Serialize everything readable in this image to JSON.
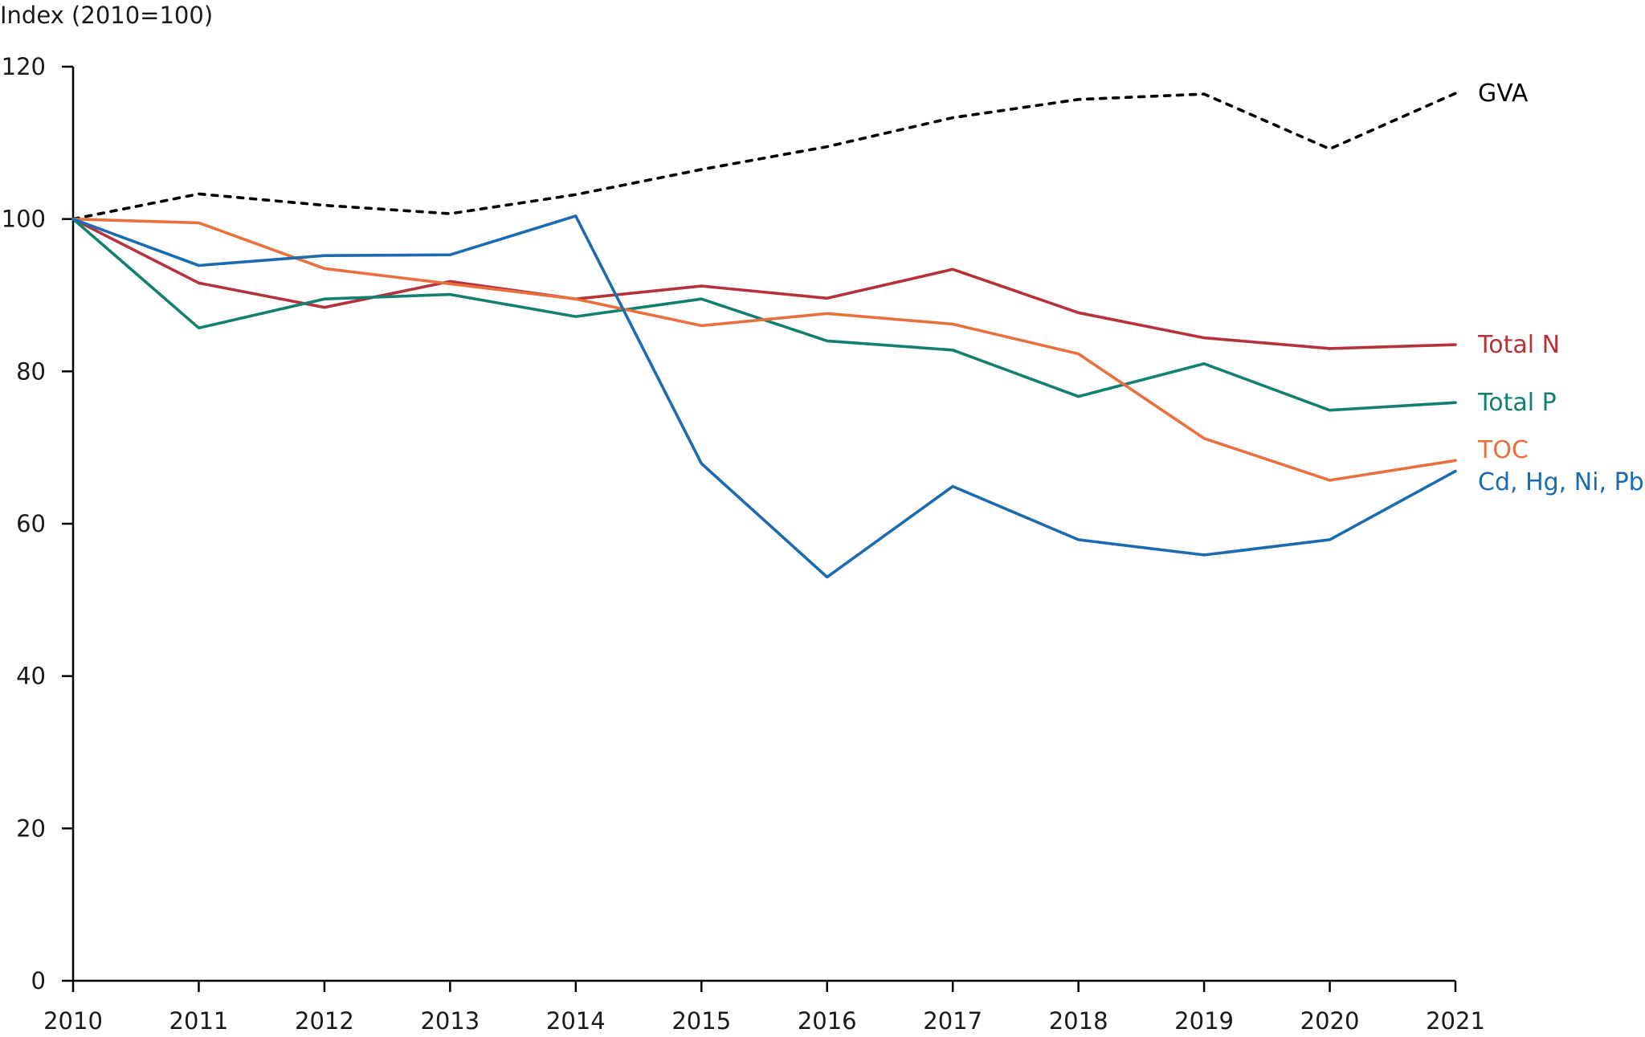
{
  "chart_data": {
    "type": "line",
    "title": "",
    "xlabel": "",
    "ylabel": "Index (2010=100)",
    "ylim": [
      0,
      120
    ],
    "yticks": [
      0,
      20,
      40,
      60,
      80,
      100,
      120
    ],
    "grid": false,
    "legend_placement": "right-end-labels",
    "x": [
      2010,
      2011,
      2012,
      2013,
      2014,
      2015,
      2016,
      2017,
      2018,
      2019,
      2020,
      2021
    ],
    "series": [
      {
        "name": "GVA",
        "color": "#000000",
        "dashed": true,
        "values": [
          100,
          103.3,
          101.8,
          100.7,
          103.2,
          106.5,
          109.5,
          113.3,
          115.7,
          116.4,
          109.2,
          116.5
        ]
      },
      {
        "name": "Total N",
        "color": "#b5323a",
        "dashed": false,
        "values": [
          100,
          91.6,
          88.4,
          91.8,
          89.5,
          91.2,
          89.6,
          93.4,
          87.7,
          84.4,
          83.0,
          83.5
        ]
      },
      {
        "name": "Total P",
        "color": "#13806f",
        "dashed": false,
        "values": [
          100,
          85.7,
          89.5,
          90.1,
          87.2,
          89.5,
          84.0,
          82.8,
          76.7,
          81.0,
          74.9,
          75.9
        ]
      },
      {
        "name": "TOC",
        "color": "#e8703d",
        "dashed": false,
        "values": [
          100,
          99.5,
          93.5,
          91.5,
          89.5,
          86.0,
          87.6,
          86.2,
          82.3,
          71.2,
          65.7,
          68.3
        ]
      },
      {
        "name": "Cd, Hg, Ni, Pb",
        "color": "#1a6bb0",
        "dashed": false,
        "values": [
          100,
          93.9,
          95.2,
          95.3,
          100.4,
          67.9,
          53.0,
          64.9,
          57.9,
          55.9,
          57.9,
          66.9
        ]
      }
    ]
  }
}
